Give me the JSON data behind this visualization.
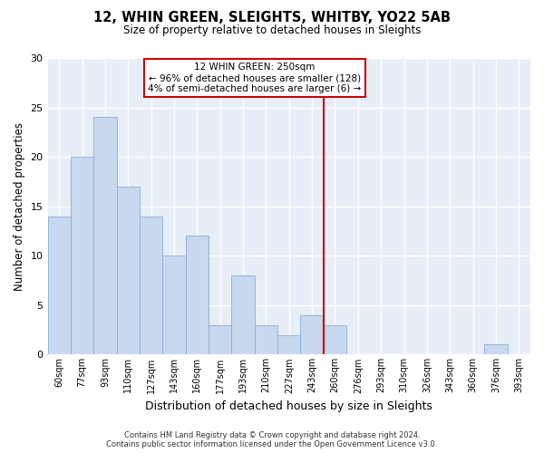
{
  "title": "12, WHIN GREEN, SLEIGHTS, WHITBY, YO22 5AB",
  "subtitle": "Size of property relative to detached houses in Sleights",
  "xlabel": "Distribution of detached houses by size in Sleights",
  "ylabel": "Number of detached properties",
  "bin_labels": [
    "60sqm",
    "77sqm",
    "93sqm",
    "110sqm",
    "127sqm",
    "143sqm",
    "160sqm",
    "177sqm",
    "193sqm",
    "210sqm",
    "227sqm",
    "243sqm",
    "260sqm",
    "276sqm",
    "293sqm",
    "310sqm",
    "326sqm",
    "343sqm",
    "360sqm",
    "376sqm",
    "393sqm"
  ],
  "bar_heights": [
    14,
    20,
    24,
    17,
    14,
    10,
    12,
    3,
    8,
    3,
    2,
    4,
    3,
    0,
    0,
    0,
    0,
    0,
    0,
    1,
    0
  ],
  "bar_color": "#c8d8ee",
  "bar_edge_color": "#8badd4",
  "property_line_x": 11.5,
  "property_line_color": "#cc0000",
  "ylim": [
    0,
    30
  ],
  "yticks": [
    0,
    5,
    10,
    15,
    20,
    25,
    30
  ],
  "annotation_title": "12 WHIN GREEN: 250sqm",
  "annotation_line1": "← 96% of detached houses are smaller (128)",
  "annotation_line2": "4% of semi-detached houses are larger (6) →",
  "annotation_box_color": "#ffffff",
  "annotation_box_edge": "#cc0000",
  "footer_line1": "Contains HM Land Registry data © Crown copyright and database right 2024.",
  "footer_line2": "Contains public sector information licensed under the Open Government Licence v3.0.",
  "plot_bg_color": "#e8eef7",
  "fig_bg_color": "#ffffff",
  "grid_color": "#ffffff",
  "grid_linewidth": 1.0
}
